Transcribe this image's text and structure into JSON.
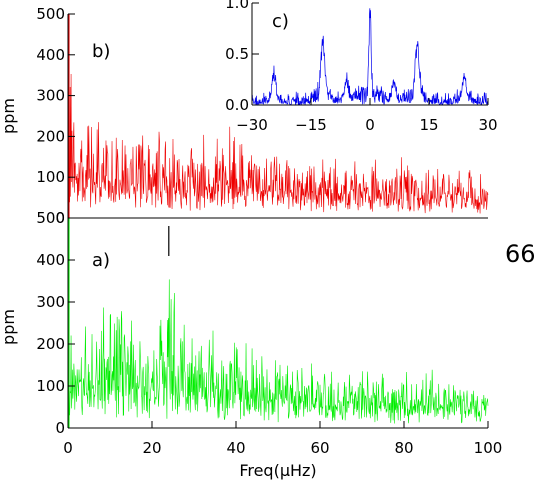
{
  "figure_note": "66",
  "colors": {
    "panel_a": "#00ee00",
    "panel_b": "#ee0000",
    "panel_c": "#0000ee"
  },
  "chart_data": [
    {
      "id": "panel_a",
      "panel_label": "a)",
      "type": "line",
      "xlabel": "Freq(μHz)",
      "ylabel": "ppm",
      "xlim": [
        0,
        100
      ],
      "ylim": [
        0,
        500
      ],
      "xticks": [
        0,
        20,
        40,
        60,
        80,
        100
      ],
      "yticks": [
        0,
        100,
        200,
        300,
        400,
        500
      ],
      "marker_line_x": 24,
      "envelope": {
        "x": [
          0,
          2,
          5,
          8,
          10,
          12,
          15,
          18,
          21,
          23,
          24,
          26,
          30,
          35,
          40,
          45,
          50,
          55,
          60,
          70,
          80,
          90,
          100
        ],
        "max": [
          500,
          230,
          280,
          300,
          350,
          350,
          290,
          260,
          280,
          320,
          380,
          300,
          250,
          230,
          230,
          210,
          190,
          160,
          150,
          150,
          140,
          140,
          100
        ],
        "base": [
          0,
          110,
          120,
          110,
          105,
          105,
          100,
          95,
          95,
          95,
          95,
          90,
          85,
          80,
          75,
          70,
          65,
          60,
          60,
          55,
          50,
          50,
          45
        ]
      }
    },
    {
      "id": "panel_b",
      "panel_label": "b)",
      "type": "line",
      "xlabel": "",
      "ylabel": "ppm",
      "xlim": [
        0,
        100
      ],
      "ylim": [
        0,
        500
      ],
      "yticks": [
        0,
        100,
        200,
        300,
        400,
        500
      ],
      "envelope": {
        "x": [
          0,
          2,
          5,
          8,
          10,
          15,
          20,
          25,
          30,
          35,
          40,
          45,
          50,
          55,
          60,
          70,
          80,
          90,
          100
        ],
        "max": [
          500,
          230,
          250,
          270,
          250,
          240,
          230,
          220,
          200,
          230,
          240,
          200,
          180,
          170,
          160,
          150,
          150,
          130,
          120
        ],
        "base": [
          0,
          90,
          95,
          95,
          90,
          85,
          85,
          80,
          80,
          80,
          80,
          75,
          70,
          70,
          65,
          60,
          55,
          55,
          45
        ]
      }
    },
    {
      "id": "panel_c",
      "panel_label": "c)",
      "type": "line",
      "xlim": [
        -30,
        30
      ],
      "ylim": [
        0,
        1
      ],
      "xticks": [
        -30,
        -15,
        0,
        15,
        30
      ],
      "yticks": [
        0.0,
        0.5,
        1.0
      ],
      "ytick_labels": [
        "0.0",
        "0.5",
        "1.0"
      ],
      "xtick_labels": [
        "−30",
        "−15",
        "0",
        "15",
        "30"
      ],
      "peaks": [
        {
          "x": 0,
          "y": 1.0
        },
        {
          "x": -12,
          "y": 0.62
        },
        {
          "x": 12,
          "y": 0.58
        },
        {
          "x": -24.5,
          "y": 0.26
        },
        {
          "x": 24,
          "y": 0.25
        },
        {
          "x": -6,
          "y": 0.2
        },
        {
          "x": 6,
          "y": 0.18
        }
      ],
      "noise_level": 0.07
    }
  ]
}
